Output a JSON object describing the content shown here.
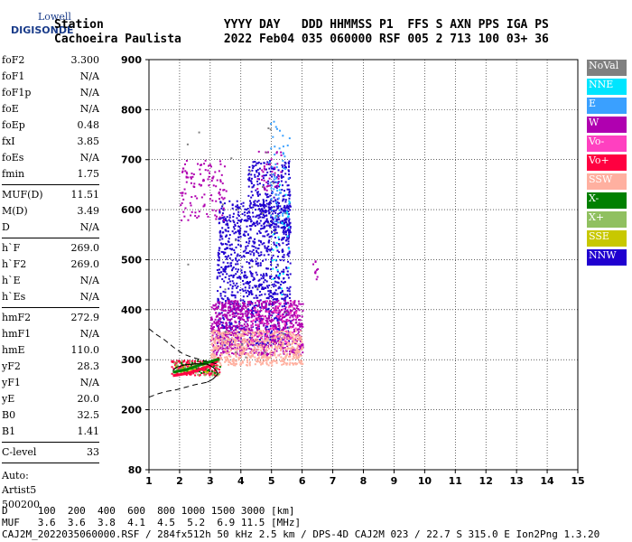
{
  "logo": {
    "top": "Lowell",
    "main": "DIGISONDE"
  },
  "header": {
    "line1": "Station                 YYYY DAY   DDD HHMMSS P1  FFS S AXN PPS IGA PS",
    "line2": "Cachoeira Paulista      2022 Feb04 035 060000 RSF 005 2 713 100 03+ 36"
  },
  "params": {
    "group1": [
      {
        "k": "foF2",
        "v": "3.300"
      },
      {
        "k": "foF1",
        "v": "N/A"
      },
      {
        "k": "foF1p",
        "v": "N/A"
      },
      {
        "k": "foE",
        "v": "N/A"
      },
      {
        "k": "foEp",
        "v": "0.48"
      },
      {
        "k": "fxI",
        "v": "3.85"
      },
      {
        "k": "foEs",
        "v": "N/A"
      },
      {
        "k": "fmin",
        "v": "1.75"
      }
    ],
    "group2": [
      {
        "k": "MUF(D)",
        "v": "11.51"
      },
      {
        "k": "M(D)",
        "v": "3.49"
      },
      {
        "k": "D",
        "v": "N/A"
      }
    ],
    "group3": [
      {
        "k": "h`F",
        "v": "269.0"
      },
      {
        "k": "h`F2",
        "v": "269.0"
      },
      {
        "k": "h`E",
        "v": "N/A"
      },
      {
        "k": "h`Es",
        "v": "N/A"
      }
    ],
    "group4": [
      {
        "k": "hmF2",
        "v": "272.9"
      },
      {
        "k": "hmF1",
        "v": "N/A"
      },
      {
        "k": "hmE",
        "v": "110.0"
      },
      {
        "k": "yF2",
        "v": "28.3"
      },
      {
        "k": "yF1",
        "v": "N/A"
      },
      {
        "k": "yE",
        "v": "20.0"
      },
      {
        "k": "B0",
        "v": "32.5"
      },
      {
        "k": "B1",
        "v": "1.41"
      }
    ],
    "group5": [
      {
        "k": "C-level",
        "v": "33"
      }
    ],
    "auto": [
      "Auto:",
      "Artist5",
      "500200"
    ]
  },
  "legend": [
    {
      "label": "NoVal",
      "color": "#808080"
    },
    {
      "label": "NNE",
      "color": "#00e5ff"
    },
    {
      "label": "E",
      "color": "#3aa0ff"
    },
    {
      "label": "W",
      "color": "#b000b0"
    },
    {
      "label": "Vo-",
      "color": "#ff40c0"
    },
    {
      "label": "Vo+",
      "color": "#ff0040"
    },
    {
      "label": "SSW",
      "color": "#ffb0a0"
    },
    {
      "label": "X-",
      "color": "#008000"
    },
    {
      "label": "X+",
      "color": "#90c060"
    },
    {
      "label": "SSE",
      "color": "#c8c800"
    },
    {
      "label": "NNW",
      "color": "#2000d0"
    }
  ],
  "bottom": {
    "line1": "D     100  200  400  600  800 1000 1500 3000 [km]",
    "line2": "MUF   3.6  3.6  3.8  4.1  4.5  5.2  6.9 11.5 [MHz]",
    "line3": "CAJ2M_2022035060000.RSF / 284fx512h 50 kHz 2.5 km / DPS-4D CAJ2M 023 / 22.7 S 315.0 E Ion2Png 1.3.20"
  },
  "chart_data": {
    "type": "scatter",
    "xlim": [
      1,
      15
    ],
    "ylim": [
      80,
      900
    ],
    "xticks": [
      1,
      2,
      3,
      4,
      5,
      6,
      7,
      8,
      9,
      10,
      11,
      12,
      13,
      14,
      15
    ],
    "yticks": [
      80,
      200,
      300,
      400,
      500,
      600,
      700,
      800,
      900
    ],
    "grid": true,
    "legend_position": "right",
    "clusters": [
      {
        "color": "#2000d0",
        "x": [
          3.2,
          5.6
        ],
        "y": [
          330,
          620
        ],
        "n": 1100
      },
      {
        "color": "#2000d0",
        "x": [
          4.2,
          5.6
        ],
        "y": [
          560,
          700
        ],
        "n": 260
      },
      {
        "color": "#b000b0",
        "x": [
          3.0,
          6.0
        ],
        "y": [
          310,
          420
        ],
        "n": 900
      },
      {
        "color": "#b000b0",
        "x": [
          2.0,
          3.5
        ],
        "y": [
          580,
          700
        ],
        "n": 120
      },
      {
        "color": "#b000b0",
        "x": [
          4.5,
          5.3
        ],
        "y": [
          640,
          720
        ],
        "n": 40
      },
      {
        "color": "#b000b0",
        "x": [
          6.3,
          6.5
        ],
        "y": [
          460,
          500
        ],
        "n": 10
      },
      {
        "color": "#ffb0a0",
        "x": [
          3.0,
          6.0
        ],
        "y": [
          290,
          360
        ],
        "n": 600
      },
      {
        "color": "#ff0040",
        "x": [
          1.7,
          3.3
        ],
        "y": [
          270,
          300
        ],
        "n": 160
      },
      {
        "color": "#ff40c0",
        "x": [
          4.3,
          5.8
        ],
        "y": [
          330,
          420
        ],
        "n": 60
      },
      {
        "color": "#3aa0ff",
        "x": [
          4.9,
          5.6
        ],
        "y": [
          570,
          780
        ],
        "n": 60
      },
      {
        "color": "#00e5ff",
        "x": [
          5.0,
          5.6
        ],
        "y": [
          430,
          680
        ],
        "n": 30
      },
      {
        "color": "#90c060",
        "x": [
          1.8,
          3.3
        ],
        "y": [
          270,
          300
        ],
        "n": 60
      },
      {
        "color": "#008000",
        "x": [
          2.0,
          3.3
        ],
        "y": [
          275,
          300
        ],
        "n": 40
      },
      {
        "color": "#c8c800",
        "x": [
          1.8,
          3.0
        ],
        "y": [
          275,
          295
        ],
        "n": 20
      },
      {
        "color": "#808080",
        "x": [
          1.8,
          5.6
        ],
        "y": [
          290,
          780
        ],
        "n": 30
      }
    ],
    "traces": [
      {
        "name": "o-trace",
        "x": [
          1.78,
          2.2,
          2.6,
          3.0,
          3.2,
          3.28
        ],
        "y": [
          268,
          272,
          279,
          288,
          296,
          305
        ]
      },
      {
        "name": "x-trace",
        "x": [
          1.78,
          2.2,
          2.6,
          3.0,
          3.2,
          3.3
        ],
        "y": [
          275,
          280,
          288,
          296,
          300,
          301
        ]
      }
    ],
    "profile": [
      {
        "name": "profile-upper-dashed",
        "style": "dashed",
        "x": [
          1.0,
          1.2,
          1.5,
          1.8,
          2.1,
          2.4,
          2.8,
          3.0,
          3.2
        ],
        "y": [
          362,
          352,
          340,
          325,
          312,
          305,
          298,
          295,
          292
        ]
      },
      {
        "name": "profile-lower-dashed",
        "style": "dashed",
        "x": [
          1.0,
          1.3,
          1.6,
          1.9,
          2.2,
          2.5,
          2.9
        ],
        "y": [
          225,
          232,
          237,
          240,
          245,
          250,
          255
        ]
      },
      {
        "name": "profile-solid",
        "style": "solid",
        "x": [
          2.9,
          3.0,
          3.1,
          3.2,
          3.25,
          3.2,
          3.1,
          3.0,
          2.9,
          2.6,
          2.2,
          1.9,
          1.78
        ],
        "y": [
          255,
          258,
          262,
          268,
          272,
          278,
          284,
          288,
          291,
          292,
          290,
          285,
          278
        ]
      }
    ]
  }
}
